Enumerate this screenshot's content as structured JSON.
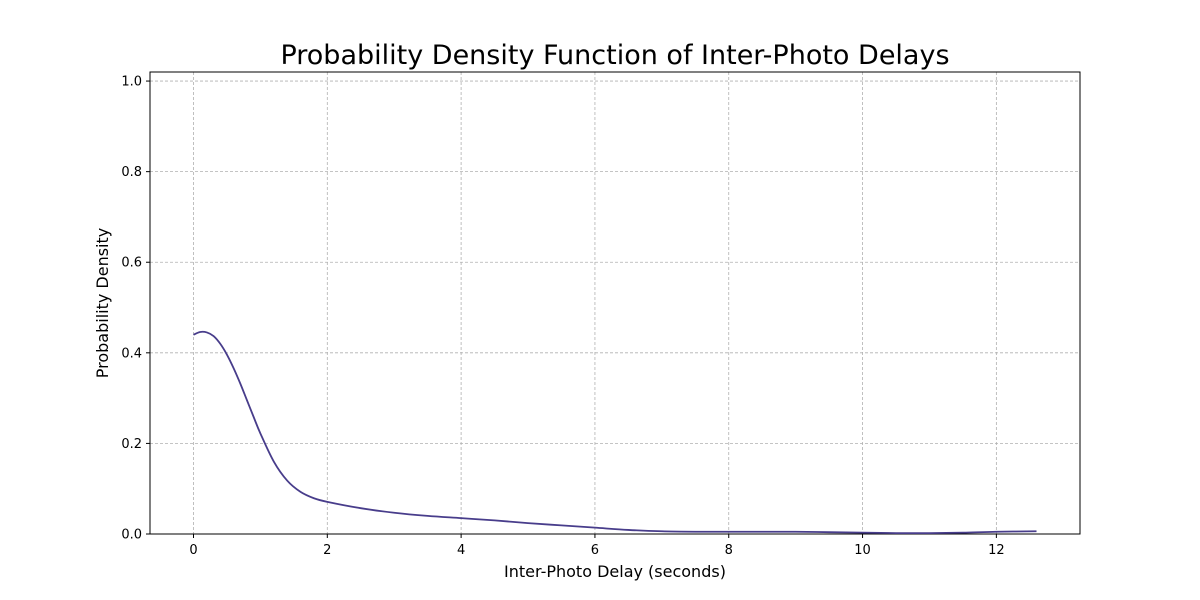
{
  "chart_data": {
    "type": "line",
    "title": "Probability Density Function of Inter-Photo Delays",
    "xlabel": "Inter-Photo Delay (seconds)",
    "ylabel": "Probability Density",
    "xlim": [
      -0.65,
      13.25
    ],
    "ylim": [
      0,
      1.02
    ],
    "xticks": [
      0,
      2,
      4,
      6,
      8,
      10,
      12
    ],
    "yticks": [
      0.0,
      0.2,
      0.4,
      0.6,
      0.8,
      1.0
    ],
    "xtick_labels": [
      "0",
      "2",
      "4",
      "6",
      "8",
      "10",
      "12"
    ],
    "ytick_labels": [
      "0.0",
      "0.2",
      "0.4",
      "0.6",
      "0.8",
      "1.0"
    ],
    "grid": true,
    "legend": "none",
    "series": [
      {
        "color": "#483d8b",
        "x": [
          0,
          0.1,
          0.2,
          0.3,
          0.4,
          0.5,
          0.6,
          0.7,
          0.8,
          0.9,
          1.0,
          1.2,
          1.4,
          1.6,
          1.8,
          2.0,
          2.5,
          3.0,
          3.5,
          4.0,
          4.5,
          5.0,
          5.5,
          6.0,
          6.5,
          7.0,
          7.5,
          8.0,
          8.5,
          9.0,
          9.5,
          10.0,
          10.5,
          11.0,
          11.5,
          12.0,
          12.6
        ],
        "y": [
          0.44,
          0.446,
          0.445,
          0.437,
          0.42,
          0.396,
          0.366,
          0.332,
          0.295,
          0.258,
          0.222,
          0.16,
          0.118,
          0.093,
          0.079,
          0.071,
          0.057,
          0.047,
          0.04,
          0.035,
          0.03,
          0.024,
          0.019,
          0.014,
          0.009,
          0.006,
          0.005,
          0.005,
          0.005,
          0.005,
          0.004,
          0.003,
          0.002,
          0.002,
          0.003,
          0.005,
          0.006
        ]
      }
    ]
  }
}
